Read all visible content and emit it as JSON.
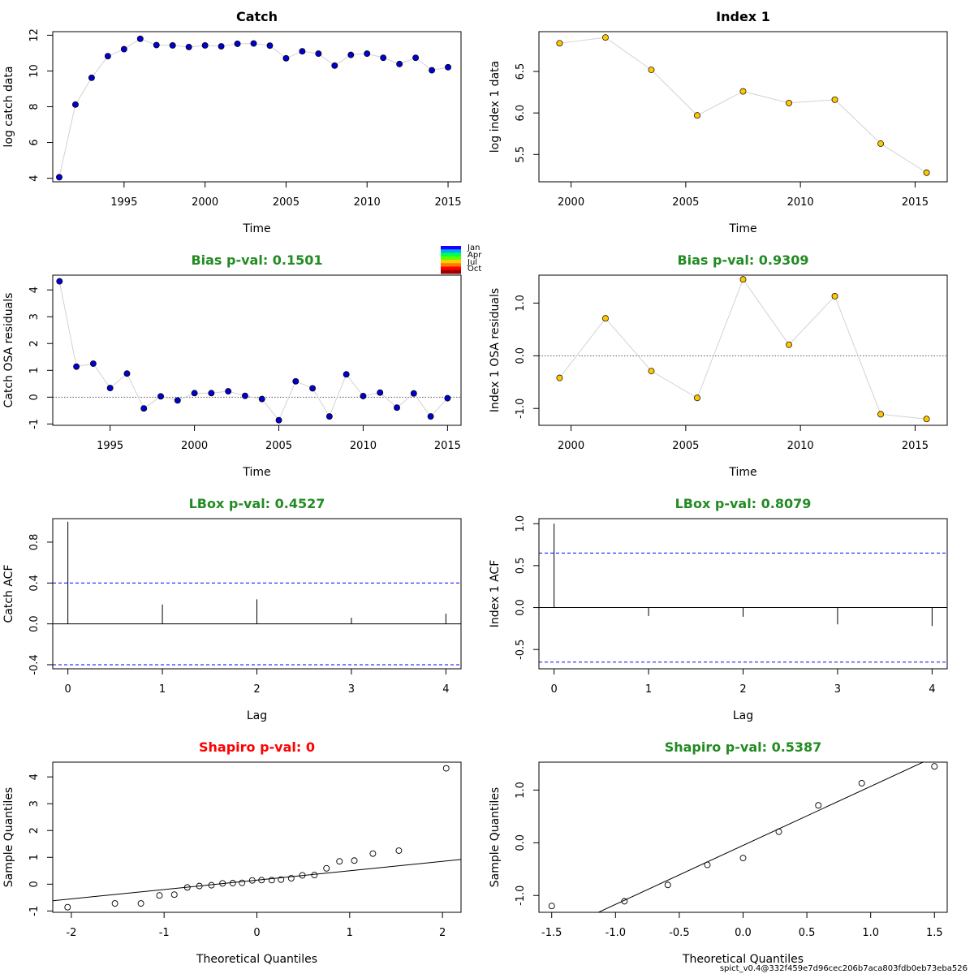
{
  "footer": "spict_v0.4@332f459e7d96cec206b7aca803fdb0eb73eba526",
  "month_legend": {
    "labels": [
      "Jan",
      "Apr",
      "Jul",
      "Oct"
    ],
    "colors": [
      "#1a00ff",
      "#00a8ff",
      "#00ff4d",
      "#5dff00",
      "#ffcc00",
      "#ff7a00",
      "#ff0000",
      "#9a0000"
    ]
  },
  "colors": {
    "green_title": "#228b22",
    "red_title": "#ff0000",
    "catch_points": "#0000cd",
    "index_points": "#ffc700",
    "connector": "#d3d3d3",
    "ci_lines": "#0000ff"
  },
  "chart_data": [
    {
      "id": "catch",
      "type": "scatter",
      "title": "Catch",
      "title_color": "black",
      "xlabel": "Time",
      "ylabel": "log catch data",
      "xlim": [
        1990.6,
        2015.8
      ],
      "ylim": [
        3.8,
        12.2
      ],
      "xticks": [
        1995,
        2000,
        2005,
        2010,
        2015
      ],
      "yticks": [
        4,
        6,
        8,
        10,
        12
      ],
      "connect": true,
      "point_style": "filled",
      "point_color": "#0000cd",
      "x": [
        1991,
        1992,
        1993,
        1994,
        1995,
        1996,
        1997,
        1998,
        1999,
        2000,
        2001,
        2002,
        2003,
        2004,
        2005,
        2006,
        2007,
        2008,
        2009,
        2010,
        2011,
        2012,
        2013,
        2014,
        2015
      ],
      "y": [
        4.06,
        8.12,
        9.62,
        10.83,
        11.22,
        11.8,
        11.45,
        11.43,
        11.34,
        11.43,
        11.38,
        11.52,
        11.54,
        11.42,
        10.71,
        11.1,
        10.97,
        10.3,
        10.9,
        10.97,
        10.74,
        10.39,
        10.74,
        10.04,
        10.21
      ]
    },
    {
      "id": "index1",
      "type": "scatter",
      "title": "Index 1",
      "title_color": "black",
      "xlabel": "Time",
      "ylabel": "log index 1 data",
      "xlim": [
        1998.6,
        2016.4
      ],
      "ylim": [
        5.17,
        6.98
      ],
      "xticks": [
        2000,
        2005,
        2010,
        2015
      ],
      "yticks": [
        5.5,
        6.0,
        6.5
      ],
      "tick_format": 1,
      "connect": true,
      "point_style": "filled",
      "point_color": "#ffc700",
      "x": [
        1999.5,
        2001.5,
        2003.5,
        2005.5,
        2007.5,
        2009.5,
        2011.5,
        2013.5,
        2015.5
      ],
      "y": [
        6.84,
        6.91,
        6.52,
        5.97,
        6.26,
        6.12,
        6.16,
        5.63,
        5.28
      ]
    },
    {
      "id": "catch-osa",
      "type": "scatter",
      "title": "Bias p-val: 0.1501",
      "title_color": "green",
      "xlabel": "Time",
      "ylabel": "Catch OSA residuals",
      "xlim": [
        1991.6,
        2015.8
      ],
      "ylim": [
        -1.05,
        4.55
      ],
      "xticks": [
        1995,
        2000,
        2005,
        2010,
        2015
      ],
      "yticks": [
        -1,
        0,
        1,
        2,
        3,
        4
      ],
      "connect": true,
      "point_style": "filled",
      "point_color": "#0000cd",
      "hline": 0,
      "x": [
        1992,
        1993,
        1994,
        1995,
        1996,
        1997,
        1998,
        1999,
        2000,
        2001,
        2002,
        2003,
        2004,
        2005,
        2006,
        2007,
        2008,
        2009,
        2010,
        2011,
        2012,
        2013,
        2014,
        2015
      ],
      "y": [
        4.32,
        1.14,
        1.25,
        0.34,
        0.88,
        -0.42,
        0.03,
        -0.12,
        0.15,
        0.15,
        0.22,
        0.05,
        -0.07,
        -0.86,
        0.59,
        0.33,
        -0.72,
        0.85,
        0.04,
        0.17,
        -0.39,
        0.14,
        -0.72,
        -0.04
      ]
    },
    {
      "id": "index1-osa",
      "type": "scatter",
      "title": "Bias p-val: 0.9309",
      "title_color": "green",
      "xlabel": "Time",
      "ylabel": "Index 1 OSA residuals",
      "xlim": [
        1998.6,
        2016.4
      ],
      "ylim": [
        -1.32,
        1.53
      ],
      "xticks": [
        2000,
        2005,
        2010,
        2015
      ],
      "yticks": [
        -1.0,
        0.0,
        1.0
      ],
      "tick_format": 1,
      "connect": true,
      "point_style": "filled",
      "point_color": "#ffc700",
      "hline": 0,
      "x": [
        1999.5,
        2001.5,
        2003.5,
        2005.5,
        2007.5,
        2009.5,
        2011.5,
        2013.5,
        2015.5
      ],
      "y": [
        -0.42,
        0.71,
        -0.29,
        -0.8,
        1.45,
        0.21,
        1.13,
        -1.11,
        -1.2
      ]
    },
    {
      "id": "catch-acf",
      "type": "bar",
      "title": "LBox p-val: 0.4527",
      "title_color": "green",
      "xlabel": "Lag",
      "ylabel": "Catch ACF",
      "xlim": [
        -0.16,
        4.16
      ],
      "ylim": [
        -0.44,
        1.03
      ],
      "xticks": [
        0,
        1,
        2,
        3,
        4
      ],
      "yticks": [
        -0.4,
        0.0,
        0.4,
        0.8
      ],
      "tick_format": 1,
      "categories": [
        0,
        1,
        2,
        3,
        4
      ],
      "values": [
        1.0,
        0.19,
        0.24,
        0.06,
        0.1
      ],
      "ci": 0.4
    },
    {
      "id": "index1-acf",
      "type": "bar",
      "title": "LBox p-val: 0.8079",
      "title_color": "green",
      "xlabel": "Lag",
      "ylabel": "Index 1 ACF",
      "xlim": [
        -0.16,
        4.16
      ],
      "ylim": [
        -0.73,
        1.06
      ],
      "xticks": [
        0,
        1,
        2,
        3,
        4
      ],
      "yticks": [
        -0.5,
        0.0,
        0.5,
        1.0
      ],
      "tick_format": 1,
      "categories": [
        0,
        1,
        2,
        3,
        4
      ],
      "values": [
        1.0,
        -0.1,
        -0.11,
        -0.2,
        -0.22
      ],
      "ci": 0.65
    },
    {
      "id": "catch-qq",
      "type": "scatter",
      "title": "Shapiro p-val: 0",
      "title_color": "red",
      "xlabel": "Theoretical Quantiles",
      "ylabel": "Sample Quantiles",
      "xlim": [
        -2.2,
        2.2
      ],
      "ylim": [
        -1.05,
        4.55
      ],
      "xticks": [
        -2,
        -1,
        0,
        1,
        2
      ],
      "yticks": [
        -1,
        0,
        1,
        2,
        3,
        4
      ],
      "point_style": "open",
      "qqline": {
        "intercept": 0.15,
        "slope": 0.35
      },
      "x": [
        -2.04,
        -1.53,
        -1.25,
        -1.05,
        -0.89,
        -0.75,
        -0.62,
        -0.49,
        -0.37,
        -0.26,
        -0.16,
        -0.05,
        0.05,
        0.16,
        0.26,
        0.37,
        0.49,
        0.62,
        0.75,
        0.89,
        1.05,
        1.25,
        1.53,
        2.04
      ],
      "y": [
        -0.86,
        -0.72,
        -0.72,
        -0.42,
        -0.39,
        -0.12,
        -0.07,
        -0.04,
        0.03,
        0.04,
        0.05,
        0.14,
        0.15,
        0.15,
        0.17,
        0.22,
        0.33,
        0.34,
        0.59,
        0.85,
        0.88,
        1.14,
        1.25,
        4.32
      ]
    },
    {
      "id": "index1-qq",
      "type": "scatter",
      "title": "Shapiro p-val: 0.5387",
      "title_color": "green",
      "xlabel": "Theoretical Quantiles",
      "ylabel": "Sample Quantiles",
      "xlim": [
        -1.6,
        1.6
      ],
      "ylim": [
        -1.32,
        1.53
      ],
      "xticks": [
        -1.5,
        -1.0,
        -0.5,
        0.0,
        0.5,
        1.0,
        1.5
      ],
      "yticks": [
        -1.0,
        0.0,
        1.0
      ],
      "tick_format": 1,
      "point_style": "open",
      "qqline": {
        "intercept": -0.05,
        "slope": 1.12
      },
      "x": [
        -1.5,
        -0.93,
        -0.59,
        -0.28,
        0.0,
        0.28,
        0.59,
        0.93,
        1.5
      ],
      "y": [
        -1.2,
        -1.11,
        -0.8,
        -0.42,
        -0.29,
        0.21,
        0.71,
        1.13,
        1.45
      ]
    }
  ]
}
